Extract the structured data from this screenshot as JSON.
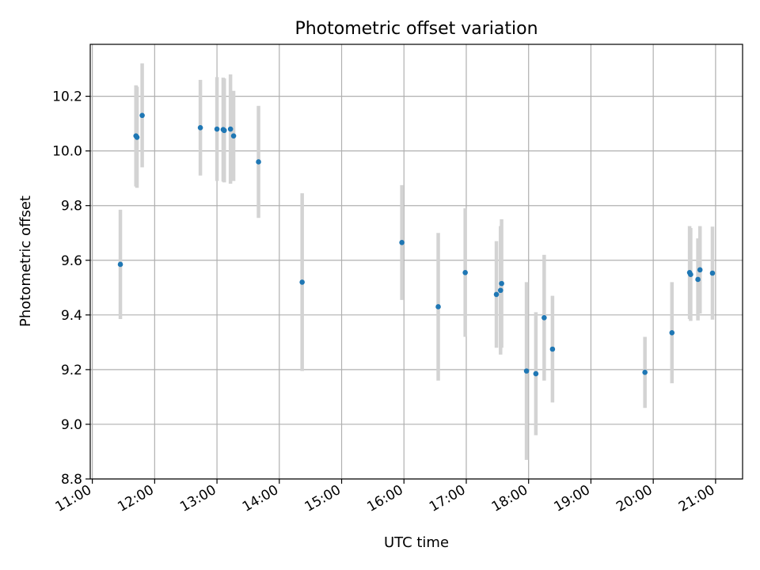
{
  "chart_data": {
    "type": "scatter",
    "title": "Photometric offset variation",
    "xlabel": "UTC time",
    "ylabel": "Photometric offset",
    "xlim": [
      "10:58",
      "21:26"
    ],
    "ylim": [
      8.8,
      10.39
    ],
    "x_ticks": [
      "11:00",
      "12:00",
      "13:00",
      "14:00",
      "15:00",
      "16:00",
      "17:00",
      "18:00",
      "19:00",
      "20:00",
      "21:00"
    ],
    "y_ticks": [
      8.8,
      9.0,
      9.2,
      9.4,
      9.6,
      9.8,
      10.0,
      10.2
    ],
    "grid": true,
    "colors": {
      "points": "#1f77b4",
      "errorbars": "#d3d3d3",
      "grid": "#b0b0b0"
    },
    "points": [
      {
        "x": "11:27",
        "y": 9.585,
        "err": 0.2
      },
      {
        "x": "11:42",
        "y": 10.055,
        "err": 0.185
      },
      {
        "x": "11:43",
        "y": 10.05,
        "err": 0.185
      },
      {
        "x": "11:48",
        "y": 10.13,
        "err": 0.19
      },
      {
        "x": "12:44",
        "y": 10.085,
        "err": 0.175
      },
      {
        "x": "13:00",
        "y": 10.08,
        "err": 0.19
      },
      {
        "x": "13:06",
        "y": 10.078,
        "err": 0.19
      },
      {
        "x": "13:07",
        "y": 10.075,
        "err": 0.19
      },
      {
        "x": "13:13",
        "y": 10.08,
        "err": 0.2
      },
      {
        "x": "13:16",
        "y": 10.055,
        "err": 0.165
      },
      {
        "x": "13:40",
        "y": 9.96,
        "err": 0.205
      },
      {
        "x": "14:22",
        "y": 9.52,
        "err": 0.325
      },
      {
        "x": "15:58",
        "y": 9.665,
        "err": 0.21
      },
      {
        "x": "16:33",
        "y": 9.43,
        "err": 0.27
      },
      {
        "x": "16:59",
        "y": 9.555,
        "err": 0.235
      },
      {
        "x": "17:29",
        "y": 9.475,
        "err": 0.195
      },
      {
        "x": "17:33",
        "y": 9.49,
        "err": 0.235
      },
      {
        "x": "17:34",
        "y": 9.515,
        "err": 0.235
      },
      {
        "x": "17:58",
        "y": 9.195,
        "err": 0.325
      },
      {
        "x": "18:07",
        "y": 9.185,
        "err": 0.225
      },
      {
        "x": "18:15",
        "y": 9.39,
        "err": 0.23
      },
      {
        "x": "18:23",
        "y": 9.275,
        "err": 0.195
      },
      {
        "x": "19:52",
        "y": 9.19,
        "err": 0.13
      },
      {
        "x": "20:18",
        "y": 9.335,
        "err": 0.185
      },
      {
        "x": "20:35",
        "y": 9.555,
        "err": 0.17
      },
      {
        "x": "20:36",
        "y": 9.548,
        "err": 0.17
      },
      {
        "x": "20:43",
        "y": 9.53,
        "err": 0.15
      },
      {
        "x": "20:45",
        "y": 9.565,
        "err": 0.16
      },
      {
        "x": "20:57",
        "y": 9.553,
        "err": 0.17
      }
    ]
  }
}
